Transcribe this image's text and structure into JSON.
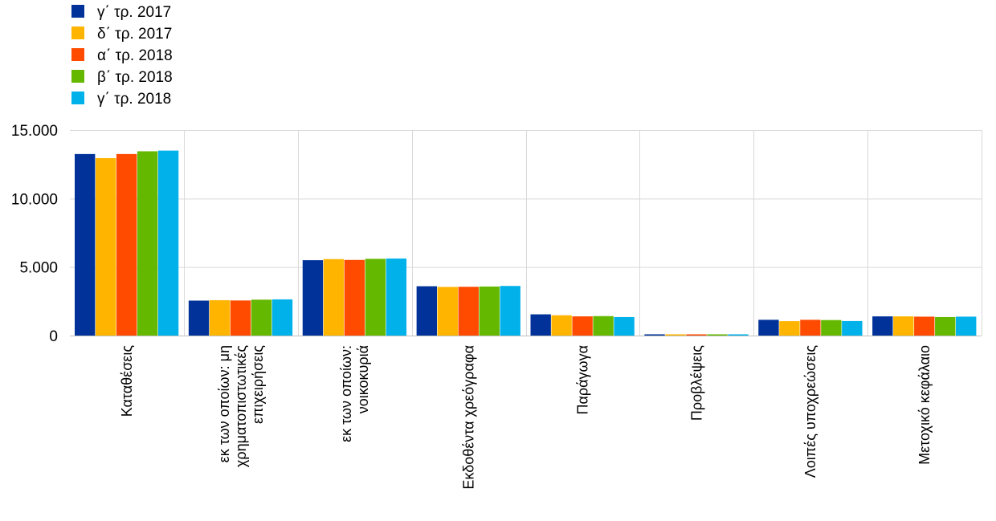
{
  "chart_data": {
    "type": "bar",
    "legend_position": "top-left",
    "grid": true,
    "ylim": [
      0,
      15000
    ],
    "yticks": [
      0,
      5000,
      10000,
      15000
    ],
    "ytick_labels": [
      "0",
      "5.000",
      "10.000",
      "15.000"
    ],
    "categories": [
      [
        "Καταθέσεις"
      ],
      [
        "εκ των οποίων: μη",
        "χρηματοπιστωτικές",
        "επιχειρήσεις"
      ],
      [
        "εκ των οποίων:",
        "νοικοκυριά"
      ],
      [
        "Εκδοθέντα χρεόγραφα"
      ],
      [
        "Παράγωγα"
      ],
      [
        "Προβλέψεις"
      ],
      [
        "Λοιπές υποχρεώσεις"
      ],
      [
        "Μετοχικό κεφάλαιο"
      ]
    ],
    "series": [
      {
        "name": "γ΄ τρ. 2017",
        "color": "#003299",
        "values": [
          13250,
          2550,
          5500,
          3600,
          1550,
          90,
          1150,
          1400
        ]
      },
      {
        "name": "δ΄ τρ. 2017",
        "color": "#FFB400",
        "values": [
          12950,
          2580,
          5580,
          3550,
          1480,
          90,
          1050,
          1400
        ]
      },
      {
        "name": "α΄ τρ. 2018",
        "color": "#FF4B00",
        "values": [
          13250,
          2560,
          5520,
          3560,
          1400,
          90,
          1150,
          1380
        ]
      },
      {
        "name": "β΄ τρ. 2018",
        "color": "#65B800",
        "values": [
          13450,
          2620,
          5600,
          3580,
          1420,
          90,
          1130,
          1350
        ]
      },
      {
        "name": "γ΄ τρ. 2018",
        "color": "#00B1EA",
        "values": [
          13500,
          2640,
          5620,
          3620,
          1350,
          90,
          1060,
          1380
        ]
      }
    ]
  }
}
